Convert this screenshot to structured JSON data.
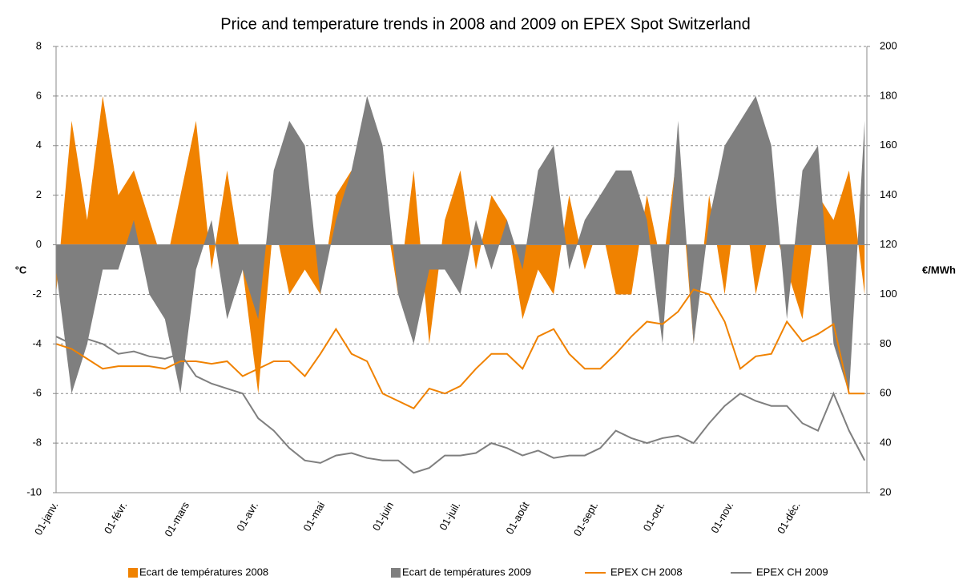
{
  "chart_data": {
    "type": "combo",
    "title": "Price and temperature trends in 2008 and 2009 on EPEX Spot Switzerland",
    "y_label": "°C",
    "y2_label": "€/MWh",
    "x": [
      0,
      7,
      14,
      21,
      28,
      35,
      42,
      49,
      56,
      63,
      70,
      77,
      84,
      91,
      98,
      105,
      112,
      119,
      126,
      133,
      140,
      147,
      154,
      161,
      168,
      175,
      182,
      189,
      196,
      203,
      210,
      217,
      224,
      231,
      238,
      245,
      252,
      259,
      266,
      273,
      280,
      287,
      294,
      301,
      308,
      315,
      322,
      329,
      336,
      343,
      350,
      357,
      364
    ],
    "xlim": [
      0,
      365
    ],
    "xticks": [
      {
        "value": 0,
        "label": "01-janv."
      },
      {
        "value": 31,
        "label": "01-févr."
      },
      {
        "value": 59,
        "label": "01-mars"
      },
      {
        "value": 90,
        "label": "01-avr."
      },
      {
        "value": 120,
        "label": "01-mai"
      },
      {
        "value": 151,
        "label": "01-juin"
      },
      {
        "value": 181,
        "label": "01-juil."
      },
      {
        "value": 212,
        "label": "01-août"
      },
      {
        "value": 243,
        "label": "01-sept."
      },
      {
        "value": 273,
        "label": "01-oct."
      },
      {
        "value": 304,
        "label": "01-nov."
      },
      {
        "value": 334,
        "label": "01-déc."
      }
    ],
    "ylim": [
      -10,
      8
    ],
    "yticks": [
      -10,
      -8,
      -6,
      -4,
      -2,
      0,
      2,
      4,
      6,
      8
    ],
    "y2lim": [
      20,
      200
    ],
    "y2ticks": [
      20,
      40,
      60,
      80,
      100,
      120,
      140,
      160,
      180,
      200
    ],
    "grid": true,
    "series": [
      {
        "name": "Ecart de températures 2008",
        "type": "area",
        "color": "#f08200",
        "values": [
          -2,
          5,
          1,
          6,
          2,
          3,
          1,
          -1,
          2,
          5,
          -1,
          3,
          -1,
          -6,
          1,
          -2,
          -1,
          -2,
          2,
          3,
          1,
          2,
          -2,
          3,
          -4,
          1,
          3,
          -1,
          2,
          1,
          -3,
          -1,
          -2,
          2,
          -1,
          1,
          -2,
          -2,
          2,
          -1,
          4,
          -4,
          2,
          -2,
          3,
          -2,
          1,
          -1,
          -3,
          2,
          1,
          3,
          -2
        ]
      },
      {
        "name": "Ecart de températures 2009",
        "type": "area",
        "color": "#7f7f7f",
        "values": [
          -1,
          -6,
          -4,
          -1,
          -1,
          1,
          -2,
          -3,
          -6,
          -1,
          1,
          -3,
          -1,
          -3,
          3,
          5,
          4,
          -2,
          1,
          3,
          6,
          4,
          -2,
          -4,
          -1,
          -1,
          -2,
          1,
          -1,
          1,
          -1,
          3,
          4,
          -1,
          1,
          2,
          3,
          3,
          1,
          -4,
          5,
          -4,
          1,
          4,
          5,
          6,
          4,
          -3,
          3,
          4,
          -4,
          -6,
          5
        ]
      },
      {
        "name": "EPEX CH 2008",
        "type": "line",
        "axis": "y2",
        "color": "#f08200",
        "values": [
          80,
          78,
          74,
          70,
          71,
          71,
          71,
          70,
          73,
          73,
          72,
          73,
          67,
          70,
          73,
          73,
          67,
          76,
          86,
          76,
          73,
          60,
          57,
          54,
          62,
          60,
          63,
          70,
          76,
          76,
          70,
          83,
          86,
          76,
          70,
          70,
          76,
          83,
          89,
          88,
          93,
          102,
          100,
          89,
          70,
          75,
          76,
          89,
          81,
          84,
          88,
          60,
          60
        ]
      },
      {
        "name": "EPEX CH 2009",
        "type": "line",
        "axis": "y2",
        "color": "#7f7f7f",
        "values": [
          83,
          80,
          82,
          80,
          76,
          77,
          75,
          74,
          76,
          67,
          64,
          62,
          60,
          50,
          45,
          38,
          33,
          32,
          35,
          36,
          34,
          33,
          33,
          28,
          30,
          35,
          35,
          36,
          40,
          38,
          35,
          37,
          34,
          35,
          35,
          38,
          45,
          42,
          40,
          42,
          43,
          40,
          48,
          55,
          60,
          57,
          55,
          55,
          48,
          45,
          60,
          45,
          33
        ]
      }
    ]
  }
}
